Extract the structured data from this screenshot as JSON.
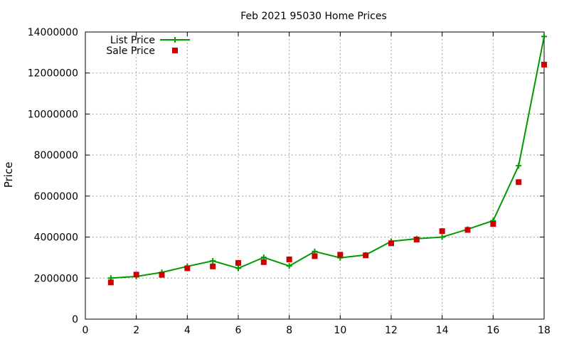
{
  "chart_data": {
    "type": "line",
    "title": "Feb 2021 95030 Home Prices",
    "xlabel": "",
    "ylabel": "Price",
    "xlim": [
      0,
      18
    ],
    "ylim": [
      0,
      14000000
    ],
    "xticks": [
      0,
      2,
      4,
      6,
      8,
      10,
      12,
      14,
      16,
      18
    ],
    "yticks": [
      0,
      2000000,
      4000000,
      6000000,
      8000000,
      10000000,
      12000000,
      14000000
    ],
    "grid": true,
    "legend_position": "top-left",
    "series": [
      {
        "name": "List Price",
        "style": "line-with-plus-markers",
        "color": "#009900",
        "x": [
          1,
          2,
          3,
          4,
          5,
          6,
          7,
          8,
          9,
          10,
          11,
          12,
          13,
          14,
          15,
          16,
          17,
          18
        ],
        "y": [
          2000000,
          2080000,
          2280000,
          2570000,
          2840000,
          2480000,
          3010000,
          2590000,
          3300000,
          2990000,
          3130000,
          3790000,
          3920000,
          4000000,
          4380000,
          4800000,
          7480000,
          13780000
        ]
      },
      {
        "name": "Sale Price",
        "style": "square-markers",
        "color": "#cc0000",
        "x": [
          1,
          2,
          3,
          4,
          5,
          6,
          7,
          8,
          9,
          10,
          11,
          12,
          13,
          14,
          15,
          16,
          17,
          18
        ],
        "y": [
          1790000,
          2170000,
          2160000,
          2480000,
          2570000,
          2740000,
          2780000,
          2910000,
          3070000,
          3140000,
          3110000,
          3700000,
          3880000,
          4290000,
          4350000,
          4640000,
          6680000,
          12410000
        ]
      }
    ]
  }
}
